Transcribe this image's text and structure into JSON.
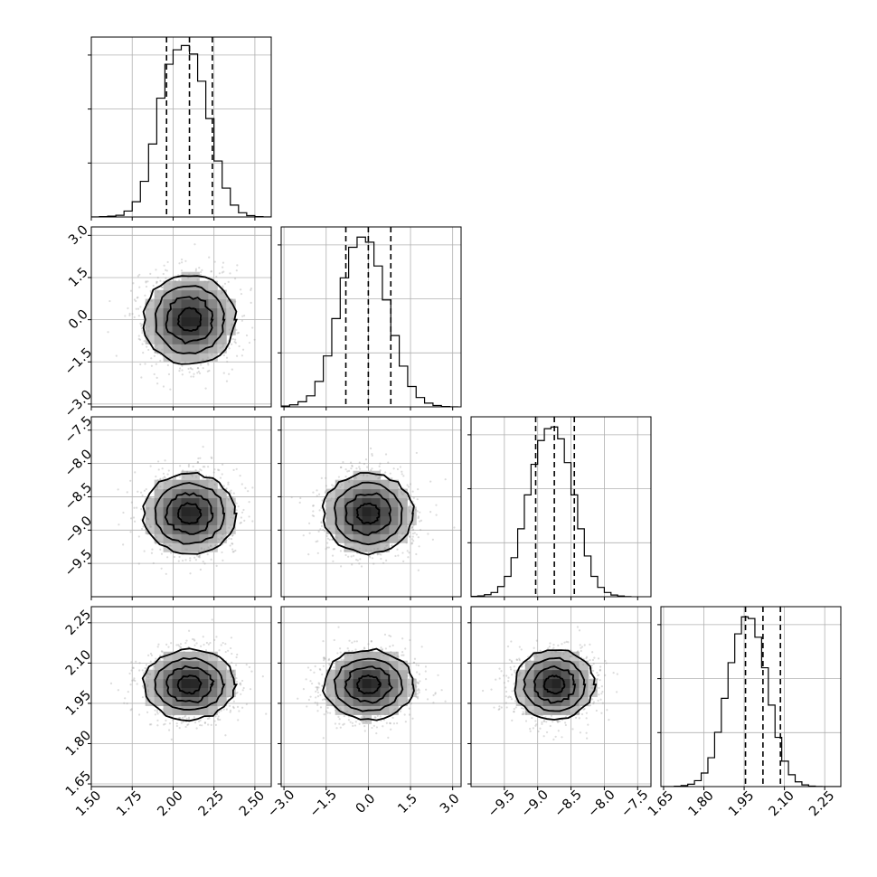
{
  "chart_data": {
    "type": "corner",
    "n_params": 4,
    "grid": true,
    "params": [
      {
        "range": [
          1.5,
          2.6
        ],
        "ticks": [
          1.5,
          1.75,
          2.0,
          2.25,
          2.5
        ],
        "tick_labels": [
          "1.50",
          "1.75",
          "2.00",
          "2.25",
          "2.50"
        ],
        "quantiles": [
          1.96,
          2.1,
          2.24
        ],
        "center": 2.1,
        "sigma": 0.14,
        "hist_bin_edges": [
          1.5,
          1.55,
          1.6,
          1.65,
          1.7,
          1.75,
          1.8,
          1.85,
          1.9,
          1.95,
          2.0,
          2.05,
          2.1,
          2.15,
          2.2,
          2.25,
          2.3,
          2.35,
          2.4,
          2.45,
          2.5,
          2.55,
          2.6
        ],
        "hist_counts": [
          0,
          2,
          5,
          10,
          35,
          90,
          210,
          430,
          700,
          900,
          985,
          1010,
          960,
          800,
          580,
          330,
          170,
          70,
          25,
          8,
          2,
          0
        ],
        "hist_ymax": 1060
      },
      {
        "range": [
          -3.1,
          3.3
        ],
        "ticks": [
          -3.0,
          -1.5,
          0.0,
          1.5,
          3.0
        ],
        "tick_labels": [
          "−3.0",
          "−1.5",
          "0.0",
          "1.5",
          "3.0"
        ],
        "quantiles": [
          -0.8,
          0.0,
          0.8
        ],
        "center": 0.0,
        "sigma": 0.8,
        "hist_bin_edges": [
          -3.1,
          -2.8,
          -2.5,
          -2.2,
          -1.9,
          -1.6,
          -1.3,
          -1.0,
          -0.7,
          -0.4,
          -0.1,
          0.2,
          0.5,
          0.8,
          1.1,
          1.4,
          1.7,
          2.0,
          2.3,
          2.6,
          2.9,
          3.2
        ],
        "hist_counts": [
          5,
          12,
          30,
          65,
          150,
          300,
          520,
          760,
          940,
          1000,
          970,
          830,
          630,
          420,
          240,
          120,
          55,
          22,
          8,
          2,
          0
        ],
        "hist_ymax": 1060
      },
      {
        "range": [
          -10.0,
          -7.3
        ],
        "ticks": [
          -9.5,
          -9.0,
          -8.5,
          -8.0,
          -7.5
        ],
        "tick_labels": [
          "−9.5",
          "−9.0",
          "−8.5",
          "−8.0",
          "−7.5"
        ],
        "quantiles": [
          -9.03,
          -8.75,
          -8.45
        ],
        "center": -8.75,
        "sigma": 0.3,
        "hist_bin_edges": [
          -10.0,
          -9.9,
          -9.8,
          -9.7,
          -9.6,
          -9.5,
          -9.4,
          -9.3,
          -9.2,
          -9.1,
          -9.0,
          -8.9,
          -8.8,
          -8.7,
          -8.6,
          -8.5,
          -8.4,
          -8.3,
          -8.2,
          -8.1,
          -8.0,
          -7.9,
          -7.8,
          -7.7,
          -7.6
        ],
        "hist_counts": [
          2,
          5,
          12,
          25,
          60,
          120,
          230,
          400,
          600,
          780,
          920,
          990,
          1000,
          930,
          790,
          600,
          400,
          240,
          120,
          55,
          25,
          10,
          4,
          1
        ],
        "hist_ymax": 1060
      },
      {
        "range": [
          1.64,
          2.31
        ],
        "ticks": [
          1.65,
          1.8,
          1.95,
          2.1,
          2.25
        ],
        "tick_labels": [
          "1.65",
          "1.80",
          "1.95",
          "2.10",
          "2.25"
        ],
        "quantiles": [
          1.955,
          2.02,
          2.085
        ],
        "center": 2.02,
        "sigma": 0.065,
        "hist_bin_edges": [
          1.64,
          1.665,
          1.69,
          1.715,
          1.74,
          1.765,
          1.79,
          1.815,
          1.84,
          1.865,
          1.89,
          1.915,
          1.94,
          1.965,
          1.99,
          2.015,
          2.04,
          2.065,
          2.09,
          2.115,
          2.14,
          2.165,
          2.19,
          2.215,
          2.24,
          2.265,
          2.29,
          2.315
        ],
        "hist_counts": [
          0,
          0,
          2,
          6,
          14,
          35,
          80,
          170,
          320,
          520,
          730,
          900,
          1000,
          990,
          880,
          700,
          480,
          290,
          150,
          70,
          28,
          10,
          3,
          1,
          0,
          0,
          0
        ],
        "hist_ymax": 1060
      }
    ],
    "contour_levels_sigma": [
      0.5,
      1.0,
      1.5,
      2.0
    ],
    "n_scatter_points": 1400
  }
}
